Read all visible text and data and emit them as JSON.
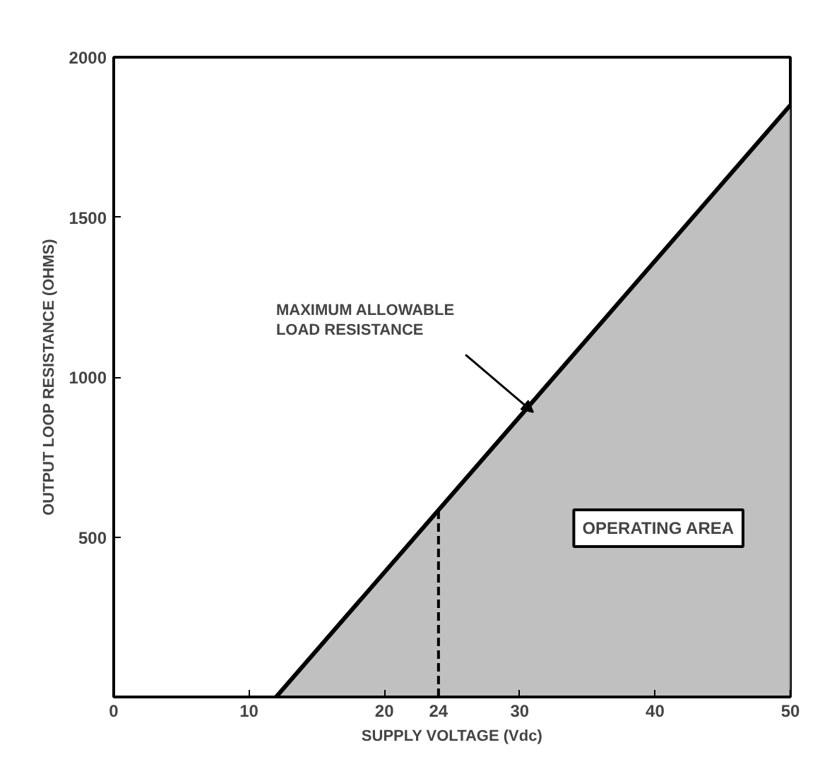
{
  "chart_data": {
    "type": "area",
    "xlabel": "SUPPLY VOLTAGE (Vdc)",
    "ylabel": "OUTPUT LOOP RESISTANCE (OHMS)",
    "x": [
      12,
      50
    ],
    "series": [
      {
        "color": "#b0b0b0",
        "values": [
          0,
          1850
        ]
      }
    ],
    "xlim": [
      0,
      50
    ],
    "ylim": [
      0,
      2000
    ],
    "xticks": [
      0,
      10,
      20,
      24,
      30,
      40,
      50
    ],
    "yticks": [
      500,
      1000,
      1500,
      2000
    ],
    "ref_lines": [
      {
        "axis": "x",
        "value": 24,
        "label": null,
        "line_style": "dashed",
        "color": "#000000"
      }
    ],
    "annotations": [
      "MAXIMUM ALLOWABLE LOAD RESISTANCE",
      "OPERATING AREA"
    ],
    "grid": false
  }
}
